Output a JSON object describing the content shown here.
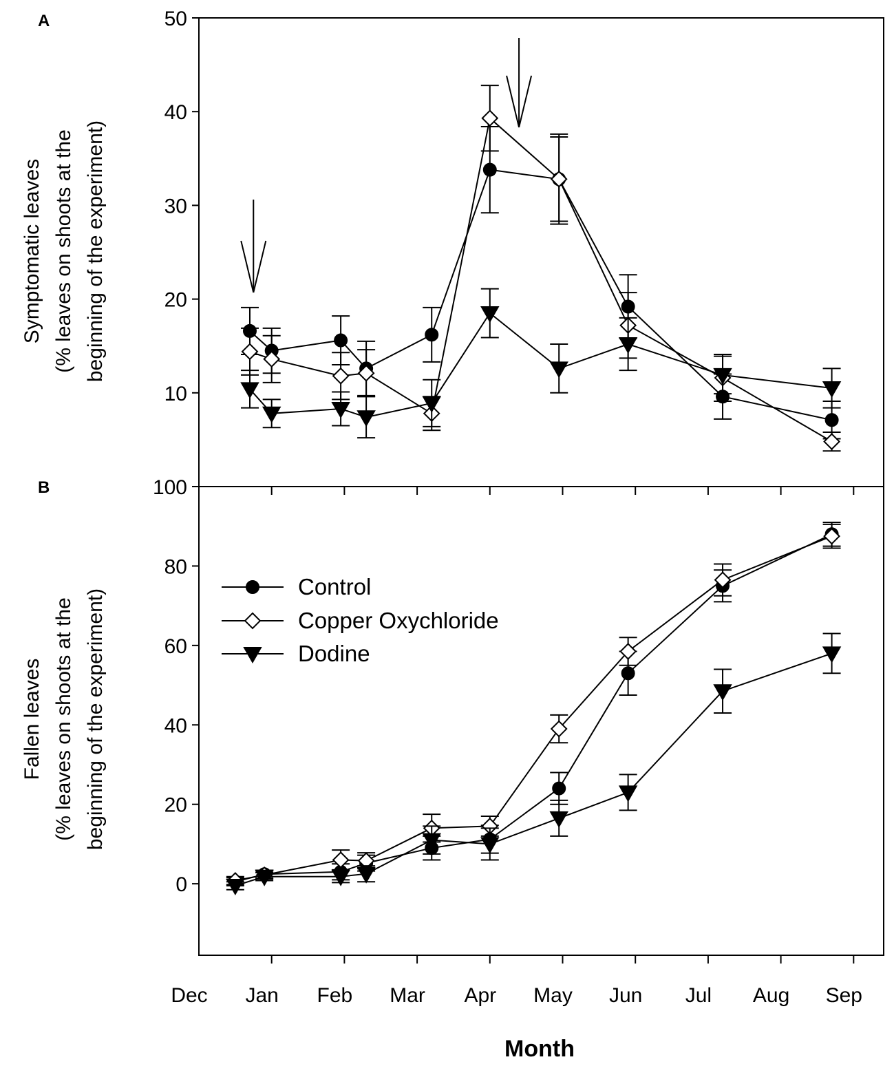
{
  "chart_data": [
    {
      "panel": "A",
      "type": "line",
      "title": "",
      "ylabel_line1": "Symptomatic leaves",
      "ylabel_line2": "(% leaves on shoots at the",
      "ylabel_line3": "beginning of the experiment)",
      "ylim": [
        0,
        50
      ],
      "yticks": [
        10,
        20,
        30,
        40,
        50
      ],
      "ytick_labels": [
        "10",
        "20",
        "30",
        "40",
        "50"
      ],
      "arrows_at_month": [
        0.75,
        4.4
      ],
      "series": [
        {
          "name": "Control",
          "marker": "filled-circle",
          "x": [
            0.7,
            1.0,
            1.95,
            2.3,
            3.2,
            4.0,
            4.95,
            5.9,
            7.2,
            8.7
          ],
          "y": [
            16.6,
            14.5,
            15.6,
            12.6,
            16.2,
            33.8,
            32.8,
            19.2,
            9.6,
            7.1
          ],
          "err": [
            2.5,
            2.4,
            2.6,
            2.9,
            2.9,
            4.6,
            4.5,
            3.4,
            2.4,
            2.0
          ]
        },
        {
          "name": "Copper Oxychloride",
          "marker": "open-diamond",
          "x": [
            0.7,
            1.0,
            1.95,
            2.3,
            3.2,
            4.0,
            4.95,
            5.9,
            7.2,
            8.7
          ],
          "y": [
            14.4,
            13.6,
            11.8,
            12.1,
            7.8,
            39.3,
            32.8,
            17.2,
            11.6,
            4.8
          ],
          "err": [
            2.5,
            2.5,
            2.5,
            2.5,
            1.8,
            3.5,
            4.8,
            3.5,
            2.5,
            1.0
          ]
        },
        {
          "name": "Dodine",
          "marker": "filled-triangle-down",
          "x": [
            0.7,
            1.0,
            1.95,
            2.3,
            3.2,
            4.0,
            4.95,
            5.9,
            7.2,
            8.7
          ],
          "y": [
            10.4,
            7.8,
            8.3,
            7.4,
            8.9,
            18.5,
            12.6,
            15.2,
            11.9,
            10.5
          ],
          "err": [
            2.0,
            1.5,
            1.8,
            2.2,
            2.5,
            2.6,
            2.6,
            2.8,
            2.0,
            2.1
          ]
        }
      ]
    },
    {
      "panel": "B",
      "type": "line",
      "title": "",
      "ylabel_line1": "Fallen leaves",
      "ylabel_line2": "(% leaves on shoots at the",
      "ylabel_line3": "beginning of the experiment)",
      "ylim": [
        -18,
        100
      ],
      "yticks": [
        0,
        20,
        40,
        60,
        80,
        100
      ],
      "ytick_labels": [
        "0",
        "20",
        "40",
        "60",
        "80",
        "100"
      ],
      "legend_location": "upper-left",
      "legend": [
        "Control",
        "Copper Oxychloride",
        "Dodine"
      ],
      "series": [
        {
          "name": "Control",
          "marker": "filled-circle",
          "x": [
            0.5,
            0.9,
            1.95,
            2.3,
            3.2,
            4.0,
            4.95,
            5.9,
            7.2,
            8.7
          ],
          "y": [
            0.5,
            2.4,
            3.0,
            5.2,
            9.0,
            11.2,
            24.0,
            53.0,
            75.0,
            88.0
          ],
          "err": [
            1.0,
            1.0,
            2.0,
            2.0,
            3.0,
            3.5,
            4.0,
            5.5,
            4.0,
            3.0
          ]
        },
        {
          "name": "Copper Oxychloride",
          "marker": "open-diamond",
          "x": [
            0.5,
            0.9,
            1.95,
            2.3,
            3.2,
            4.0,
            4.95,
            5.9,
            7.2,
            8.7
          ],
          "y": [
            0.8,
            2.2,
            6.0,
            5.8,
            14.0,
            14.5,
            39.0,
            58.5,
            76.5,
            87.5
          ],
          "err": [
            1.0,
            1.0,
            2.5,
            2.0,
            3.5,
            2.5,
            3.5,
            3.5,
            4.0,
            3.0
          ]
        },
        {
          "name": "Dodine",
          "marker": "filled-triangle-down",
          "x": [
            0.5,
            0.9,
            1.95,
            2.3,
            3.2,
            4.0,
            4.95,
            5.9,
            7.2,
            8.7
          ],
          "y": [
            -0.5,
            1.8,
            1.8,
            2.5,
            11.0,
            10.0,
            16.5,
            23.0,
            48.5,
            58.0
          ],
          "err": [
            1.0,
            1.0,
            1.5,
            2.0,
            3.5,
            4.0,
            4.5,
            4.5,
            5.5,
            5.0
          ]
        }
      ]
    }
  ],
  "months": [
    "Dec",
    "Jan",
    "Feb",
    "Mar",
    "Apr",
    "May",
    "Jun",
    "Jul",
    "Aug",
    "Sep"
  ],
  "xlabel": "Month"
}
